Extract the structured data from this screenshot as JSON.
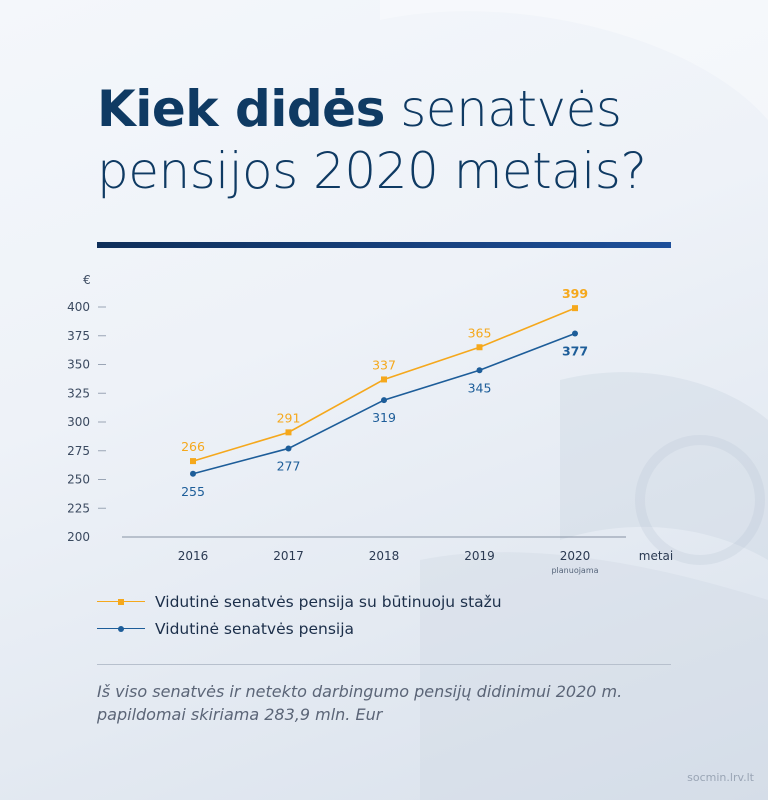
{
  "title": {
    "bold": "Kiek didės",
    "rest": " senatvės pensijos 2020 metais?"
  },
  "chart_data": {
    "type": "line",
    "categories": [
      "2016",
      "2017",
      "2018",
      "2019",
      "2020"
    ],
    "category_sublabels": [
      "",
      "",
      "",
      "",
      "planuojama"
    ],
    "xlabel": "metai",
    "ylabel": "€",
    "ylim": [
      200,
      400
    ],
    "yticks": [
      200,
      225,
      250,
      275,
      300,
      325,
      350,
      375,
      400
    ],
    "grid": false,
    "legend_position": "bottom",
    "series": [
      {
        "name": "Vidutinė senatvės pensija su būtinuoju stažu",
        "values": [
          266,
          291,
          337,
          365,
          399
        ],
        "color": "#f5a81c",
        "marker": "square",
        "label_position": "above"
      },
      {
        "name": "Vidutinė senatvės pensija",
        "values": [
          255,
          277,
          319,
          345,
          377
        ],
        "color": "#1d5d99",
        "marker": "circle",
        "label_position": "below"
      }
    ]
  },
  "note": "Iš viso senatvės ir netekto darbingumo pensijų didinimui 2020 m. papildomai skiriama 283,9 mln. Eur",
  "footer": "socmin.lrv.lt"
}
